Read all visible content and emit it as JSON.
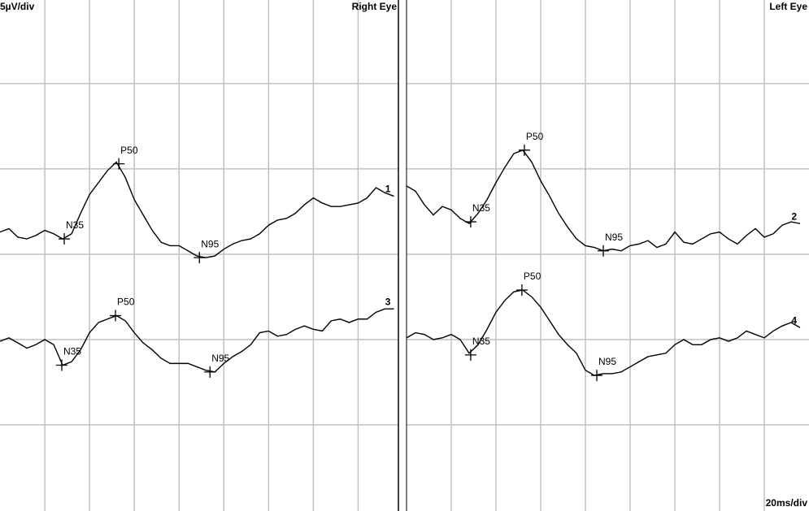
{
  "scale_labels": {
    "amplitude": "5µV/div",
    "time": "20ms/div"
  },
  "chart_data": [
    {
      "type": "line",
      "title": "Right Eye",
      "xlim": [
        0,
        178
      ],
      "ylim": [
        0,
        29.9
      ],
      "xticks": [
        20,
        40,
        60,
        80,
        100,
        120,
        140,
        160
      ],
      "yticks": [
        5,
        10,
        15,
        20,
        25
      ],
      "grid": true,
      "x": [
        0,
        4,
        8,
        12,
        16,
        20,
        24,
        28,
        32,
        36,
        40,
        44,
        48,
        52,
        56,
        60,
        64,
        68,
        72,
        76,
        80,
        84,
        88,
        92,
        96,
        100,
        104,
        108,
        112,
        116,
        120,
        124,
        128,
        132,
        136,
        140,
        144,
        148,
        152,
        156,
        160,
        164,
        168,
        172,
        176
      ],
      "series": [
        {
          "name": "1",
          "color": "#000000",
          "values": [
            16.3,
            16.5,
            16.0,
            15.9,
            16.1,
            16.4,
            16.2,
            15.9,
            16.2,
            17.4,
            18.5,
            19.2,
            19.9,
            20.4,
            19.5,
            18.2,
            17.3,
            16.4,
            15.7,
            15.5,
            15.5,
            15.2,
            14.9,
            14.8,
            14.9,
            15.3,
            15.6,
            15.8,
            15.9,
            16.2,
            16.7,
            17.0,
            17.1,
            17.4,
            17.9,
            18.3,
            18.0,
            17.8,
            17.8,
            17.9,
            18.0,
            18.3,
            18.9,
            18.6,
            18.4
          ],
          "peaks": [
            {
              "label": "N35",
              "x": 28.7,
              "y": 15.9
            },
            {
              "label": "P50",
              "x": 53.1,
              "y": 20.3
            },
            {
              "label": "N95",
              "x": 89.1,
              "y": 14.8
            }
          ]
        },
        {
          "name": "3",
          "color": "#000000",
          "values": [
            9.9,
            10.1,
            9.8,
            9.5,
            9.7,
            10.0,
            9.7,
            8.5,
            8.7,
            9.4,
            10.4,
            11.0,
            11.2,
            11.4,
            11.1,
            10.4,
            9.8,
            9.4,
            8.9,
            8.6,
            8.6,
            8.6,
            8.4,
            8.2,
            8.1,
            8.6,
            9.0,
            9.3,
            9.7,
            10.4,
            10.5,
            10.2,
            10.3,
            10.6,
            10.8,
            10.6,
            10.5,
            11.1,
            11.2,
            11.0,
            11.2,
            11.2,
            11.6,
            11.8,
            11.8
          ],
          "peaks": [
            {
              "label": "N35",
              "x": 27.6,
              "y": 8.5
            },
            {
              "label": "P50",
              "x": 51.6,
              "y": 11.4
            },
            {
              "label": "N95",
              "x": 93.8,
              "y": 8.1
            }
          ]
        }
      ]
    },
    {
      "type": "line",
      "title": "Left Eye",
      "xlim": [
        0,
        180
      ],
      "ylim": [
        0,
        29.9
      ],
      "xticks": [
        20,
        40,
        60,
        80,
        100,
        120,
        140,
        160
      ],
      "yticks": [
        5,
        10,
        15,
        20,
        25
      ],
      "grid": true,
      "x": [
        0,
        4,
        8,
        12,
        16,
        20,
        24,
        28,
        32,
        36,
        40,
        44,
        48,
        52,
        56,
        60,
        64,
        68,
        72,
        76,
        80,
        84,
        88,
        92,
        96,
        100,
        104,
        108,
        112,
        116,
        120,
        124,
        128,
        132,
        136,
        140,
        144,
        148,
        152,
        156,
        160,
        164,
        168,
        172,
        176
      ],
      "series": [
        {
          "name": "2",
          "color": "#000000",
          "values": [
            19.0,
            18.7,
            17.9,
            17.3,
            17.8,
            17.6,
            17.1,
            16.8,
            17.4,
            18.2,
            19.2,
            20.1,
            20.9,
            21.1,
            20.4,
            19.3,
            18.4,
            17.4,
            16.6,
            15.9,
            15.5,
            15.4,
            15.2,
            15.3,
            15.2,
            15.5,
            15.6,
            15.8,
            15.4,
            15.6,
            16.3,
            15.7,
            15.6,
            15.9,
            16.2,
            16.3,
            15.9,
            15.6,
            16.1,
            16.5,
            16.0,
            16.2,
            16.7,
            16.9,
            16.8
          ],
          "peaks": [
            {
              "label": "N35",
              "x": 28.7,
              "y": 16.9
            },
            {
              "label": "P50",
              "x": 52.7,
              "y": 21.1
            },
            {
              "label": "N95",
              "x": 88,
              "y": 15.2
            }
          ]
        },
        {
          "name": "4",
          "color": "#000000",
          "values": [
            10.1,
            10.4,
            10.3,
            10.0,
            10.1,
            10.3,
            10.0,
            9.2,
            9.7,
            10.6,
            11.6,
            12.3,
            12.8,
            12.9,
            12.5,
            11.9,
            11.1,
            10.3,
            9.7,
            9.2,
            8.2,
            7.9,
            8.0,
            8.0,
            8.1,
            8.4,
            8.7,
            9.0,
            9.1,
            9.2,
            9.7,
            10.0,
            9.7,
            9.7,
            10.0,
            10.1,
            9.9,
            10.1,
            10.5,
            10.3,
            10.1,
            10.5,
            10.8,
            11.0,
            10.7
          ],
          "peaks": [
            {
              "label": "N35",
              "x": 28.7,
              "y": 9.1
            },
            {
              "label": "P50",
              "x": 51.6,
              "y": 12.9
            },
            {
              "label": "N95",
              "x": 85.1,
              "y": 7.9
            }
          ]
        }
      ]
    }
  ]
}
